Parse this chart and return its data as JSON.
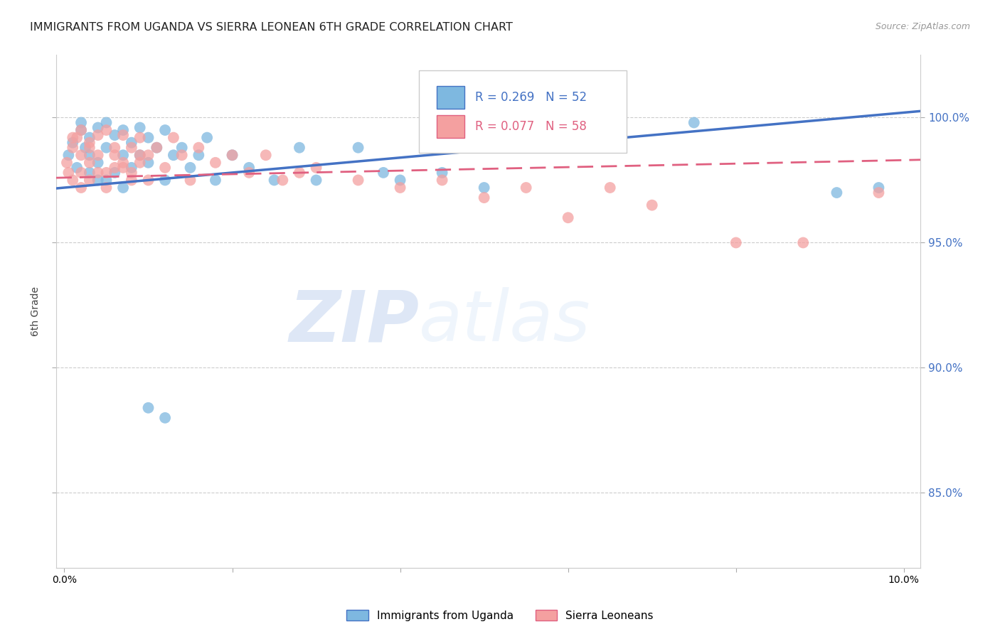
{
  "title": "IMMIGRANTS FROM UGANDA VS SIERRA LEONEAN 6TH GRADE CORRELATION CHART",
  "source": "Source: ZipAtlas.com",
  "ylabel": "6th Grade",
  "xlim": [
    -0.001,
    0.102
  ],
  "ylim": [
    0.82,
    1.025
  ],
  "y_ticks": [
    0.85,
    0.9,
    0.95,
    1.0
  ],
  "grid_color": "#cccccc",
  "background_color": "#ffffff",
  "blue_color": "#7eb8e0",
  "pink_color": "#f4a0a0",
  "blue_line_color": "#4472c4",
  "pink_line_color": "#e06080",
  "watermark_zip": "ZIP",
  "watermark_atlas": "atlas",
  "blue_x": [
    0.0005,
    0.001,
    0.0015,
    0.002,
    0.002,
    0.0025,
    0.003,
    0.003,
    0.003,
    0.004,
    0.004,
    0.004,
    0.005,
    0.005,
    0.005,
    0.006,
    0.006,
    0.007,
    0.007,
    0.007,
    0.008,
    0.008,
    0.009,
    0.009,
    0.01,
    0.01,
    0.011,
    0.012,
    0.012,
    0.013,
    0.014,
    0.015,
    0.016,
    0.017,
    0.018,
    0.02,
    0.022,
    0.025,
    0.028,
    0.03,
    0.035,
    0.038,
    0.04,
    0.045,
    0.05,
    0.055,
    0.06,
    0.075,
    0.092,
    0.097,
    0.01,
    0.012
  ],
  "blue_y": [
    0.985,
    0.99,
    0.98,
    0.995,
    0.998,
    0.988,
    0.992,
    0.985,
    0.978,
    0.996,
    0.982,
    0.975,
    0.998,
    0.988,
    0.975,
    0.993,
    0.978,
    0.995,
    0.985,
    0.972,
    0.99,
    0.98,
    0.996,
    0.985,
    0.992,
    0.982,
    0.988,
    0.995,
    0.975,
    0.985,
    0.988,
    0.98,
    0.985,
    0.992,
    0.975,
    0.985,
    0.98,
    0.975,
    0.988,
    0.975,
    0.988,
    0.978,
    0.975,
    0.978,
    0.972,
    0.988,
    0.996,
    0.998,
    0.97,
    0.972,
    0.884,
    0.88
  ],
  "pink_x": [
    0.0003,
    0.0005,
    0.001,
    0.001,
    0.0015,
    0.002,
    0.002,
    0.002,
    0.003,
    0.003,
    0.003,
    0.004,
    0.004,
    0.005,
    0.005,
    0.006,
    0.006,
    0.007,
    0.007,
    0.008,
    0.008,
    0.009,
    0.009,
    0.01,
    0.01,
    0.011,
    0.012,
    0.013,
    0.014,
    0.015,
    0.016,
    0.018,
    0.02,
    0.022,
    0.024,
    0.026,
    0.028,
    0.03,
    0.035,
    0.04,
    0.045,
    0.05,
    0.055,
    0.06,
    0.065,
    0.07,
    0.08,
    0.088,
    0.097,
    0.001,
    0.002,
    0.003,
    0.004,
    0.005,
    0.006,
    0.007,
    0.008,
    0.009
  ],
  "pink_y": [
    0.982,
    0.978,
    0.988,
    0.975,
    0.992,
    0.985,
    0.978,
    0.972,
    0.99,
    0.982,
    0.975,
    0.993,
    0.985,
    0.978,
    0.995,
    0.988,
    0.98,
    0.993,
    0.982,
    0.988,
    0.978,
    0.992,
    0.982,
    0.985,
    0.975,
    0.988,
    0.98,
    0.992,
    0.985,
    0.975,
    0.988,
    0.982,
    0.985,
    0.978,
    0.985,
    0.975,
    0.978,
    0.98,
    0.975,
    0.972,
    0.975,
    0.968,
    0.972,
    0.96,
    0.972,
    0.965,
    0.95,
    0.95,
    0.97,
    0.992,
    0.995,
    0.988,
    0.978,
    0.972,
    0.985,
    0.98,
    0.975,
    0.985
  ]
}
